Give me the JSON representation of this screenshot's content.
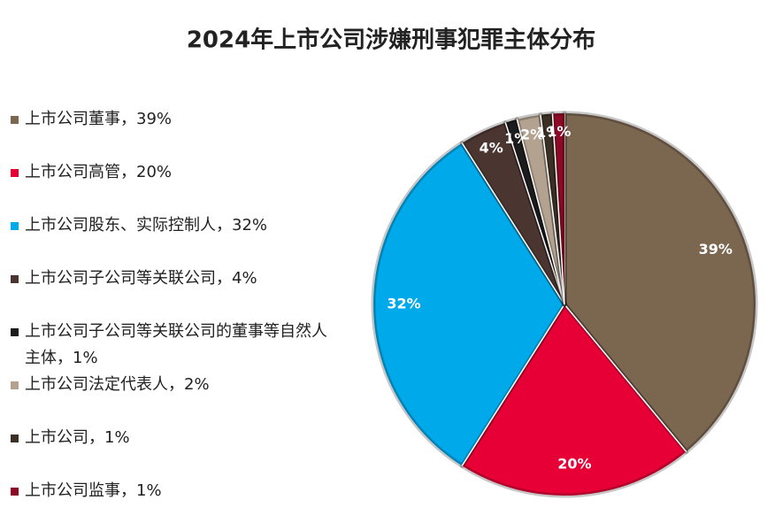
{
  "chart_data": {
    "type": "pie",
    "title": "2024年上市公司涉嫌刑事犯罪主体分布",
    "categories": [
      "上市公司董事，39%",
      "上市公司高管，20%",
      "上市公司股东、实际控制人，32%",
      "上市公司子公司等关联公司，4%",
      "上市公司子公司等关联公司的董事等自然人主体，1%",
      "上市公司法定代表人，2%",
      "上市公司，1%",
      "上市公司监事，1%"
    ],
    "values": [
      39,
      20,
      32,
      4,
      1,
      2,
      1,
      1
    ],
    "value_labels": [
      "39%",
      "20%",
      "32%",
      "4%",
      "1%",
      "2%",
      "1%",
      "1%"
    ],
    "colors": [
      "#7b6650",
      "#e60036",
      "#00a9e9",
      "#4b3531",
      "#1c1c1c",
      "#b3a290",
      "#3c3024",
      "#8c0a26"
    ],
    "legend": "left"
  }
}
